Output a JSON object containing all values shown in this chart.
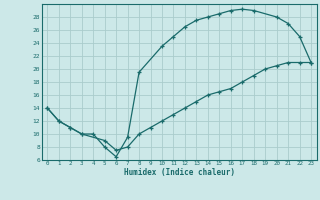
{
  "xlabel": "Humidex (Indice chaleur)",
  "bg_color": "#cce8e8",
  "line_color": "#1a6b6b",
  "grid_color": "#aacccc",
  "ylim": [
    6,
    30
  ],
  "xlim": [
    -0.5,
    23.5
  ],
  "yticks": [
    6,
    8,
    10,
    12,
    14,
    16,
    18,
    20,
    22,
    24,
    26,
    28
  ],
  "xticks": [
    0,
    1,
    2,
    3,
    4,
    5,
    6,
    7,
    8,
    9,
    10,
    11,
    12,
    13,
    14,
    15,
    16,
    17,
    18,
    19,
    20,
    21,
    22,
    23
  ],
  "curve1_x": [
    0,
    1,
    2,
    3,
    4,
    5,
    6,
    7,
    8,
    10,
    11,
    12,
    13,
    14,
    15,
    16,
    17,
    18,
    20,
    21,
    22,
    23
  ],
  "curve1_y": [
    14,
    12,
    11,
    10,
    10,
    8,
    6.5,
    9.5,
    19.5,
    23.5,
    25,
    26.5,
    27.5,
    28,
    28.5,
    29,
    29.2,
    29,
    28,
    27,
    25,
    21
  ],
  "curve2_x": [
    0,
    1,
    2,
    3,
    5,
    6,
    7,
    8,
    9,
    10,
    11,
    12,
    13,
    14,
    15,
    16,
    17,
    18,
    19,
    20,
    21,
    22,
    23
  ],
  "curve2_y": [
    14,
    12,
    11,
    10,
    9,
    7.5,
    8,
    10,
    11,
    12,
    13,
    14,
    15,
    16,
    16.5,
    17,
    18,
    19,
    20,
    20.5,
    21,
    21,
    21
  ]
}
